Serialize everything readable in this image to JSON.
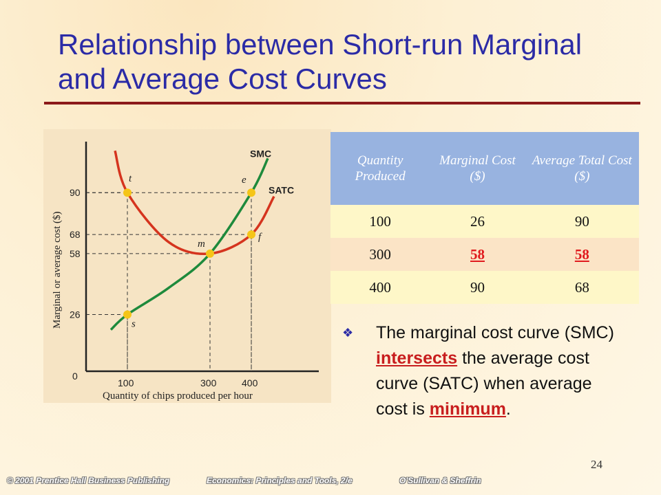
{
  "slide": {
    "title": "Relationship between Short-run Marginal and Average Cost Curves",
    "page_number": "24",
    "footer": {
      "copyright": "© 2001 Prentice Hall Business Publishing",
      "book": "Economics: Principles and Tools, 2/e",
      "authors": "O'Sullivan & Sheffrin"
    }
  },
  "table": {
    "headers": [
      "Quantity Produced",
      "Marginal Cost ($)",
      "Average Total Cost ($)"
    ],
    "rows": [
      [
        "100",
        "26",
        "90"
      ],
      [
        "300",
        "58",
        "58"
      ],
      [
        "400",
        "90",
        "68"
      ]
    ]
  },
  "bullet": {
    "part1": "The marginal cost curve (SMC) ",
    "emphasis1": "intersects",
    "part2": " the average cost curve (SATC) when average cost is ",
    "emphasis2": "minimum",
    "part3": "."
  },
  "colors": {
    "smc": "#1e8a3c",
    "satc": "#d5341e",
    "point": "#f5c518",
    "title": "#2b2ba6"
  },
  "chart_data": {
    "type": "line",
    "title": "",
    "xlabel": "Quantity of chips produced per hour",
    "ylabel": "Marginal or average cost ($)",
    "xticks": [
      "0",
      "100",
      "300",
      "400"
    ],
    "yticks": [
      "26",
      "58",
      "68",
      "90"
    ],
    "xlim": [
      0,
      450
    ],
    "ylim": [
      0,
      115
    ],
    "series": [
      {
        "name": "SMC",
        "x": [
          60,
          100,
          200,
          300,
          400,
          440
        ],
        "y": [
          18,
          26,
          40,
          58,
          90,
          108
        ]
      },
      {
        "name": "SATC",
        "x": [
          70,
          100,
          200,
          300,
          400,
          455
        ],
        "y": [
          112,
          90,
          64,
          58,
          68,
          88
        ]
      }
    ],
    "points": [
      {
        "label": "t",
        "x": 100,
        "y": 90
      },
      {
        "label": "s",
        "x": 100,
        "y": 26
      },
      {
        "label": "m",
        "x": 300,
        "y": 58
      },
      {
        "label": "e",
        "x": 400,
        "y": 90
      },
      {
        "label": "f",
        "x": 400,
        "y": 68
      }
    ]
  }
}
